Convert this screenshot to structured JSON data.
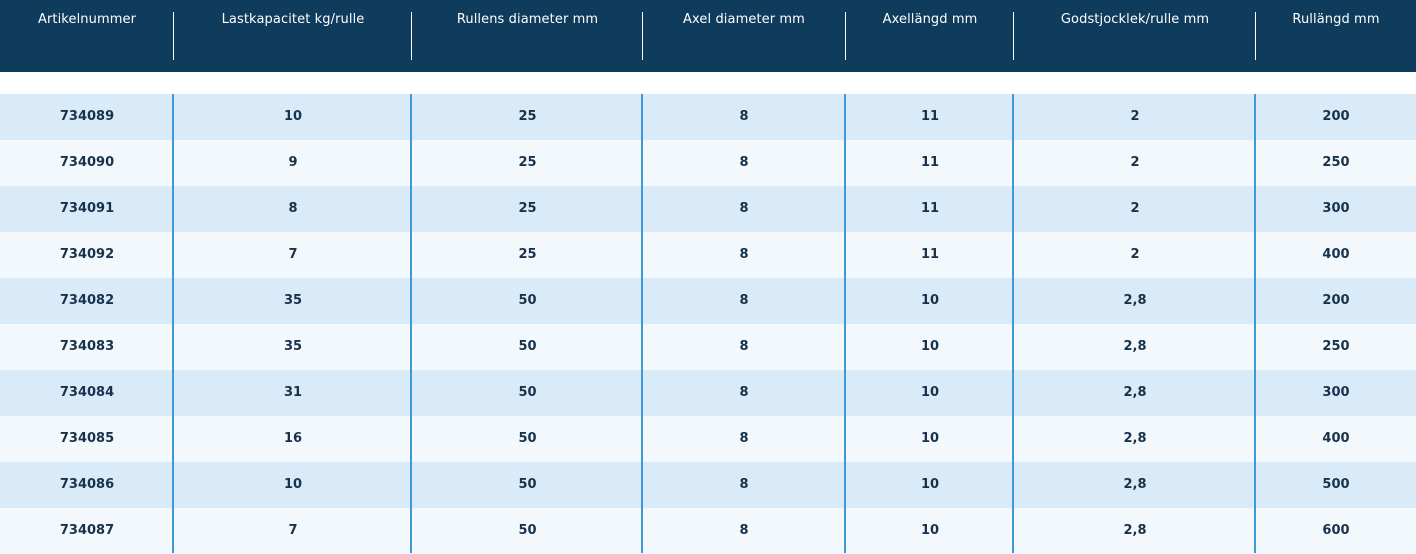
{
  "table": {
    "headers": [
      "Artikelnummer",
      "Lastkapacitet kg/rulle",
      "Rullens diameter mm",
      "Axel diameter mm",
      "Axellängd mm",
      "Godstjocklek/rulle mm",
      "Rullängd mm"
    ],
    "rows": [
      [
        "734089",
        "10",
        "25",
        "8",
        "11",
        "2",
        "200"
      ],
      [
        "734090",
        "9",
        "25",
        "8",
        "11",
        "2",
        "250"
      ],
      [
        "734091",
        "8",
        "25",
        "8",
        "11",
        "2",
        "300"
      ],
      [
        "734092",
        "7",
        "25",
        "8",
        "11",
        "2",
        "400"
      ],
      [
        "734082",
        "35",
        "50",
        "8",
        "10",
        "2,8",
        "200"
      ],
      [
        "734083",
        "35",
        "50",
        "8",
        "10",
        "2,8",
        "250"
      ],
      [
        "734084",
        "31",
        "50",
        "8",
        "10",
        "2,8",
        "300"
      ],
      [
        "734085",
        "16",
        "50",
        "8",
        "10",
        "2,8",
        "400"
      ],
      [
        "734086",
        "10",
        "50",
        "8",
        "10",
        "2,8",
        "500"
      ],
      [
        "734087",
        "7",
        "50",
        "8",
        "10",
        "2,8",
        "600"
      ]
    ]
  },
  "colors": {
    "header_bg": "#0f3b5c",
    "header_text": "#ffffff",
    "row_odd_bg": "#d9ebf9",
    "row_even_bg": "#f3f8fd",
    "cell_text": "#17324a",
    "column_separator": "#3e9ad7"
  }
}
